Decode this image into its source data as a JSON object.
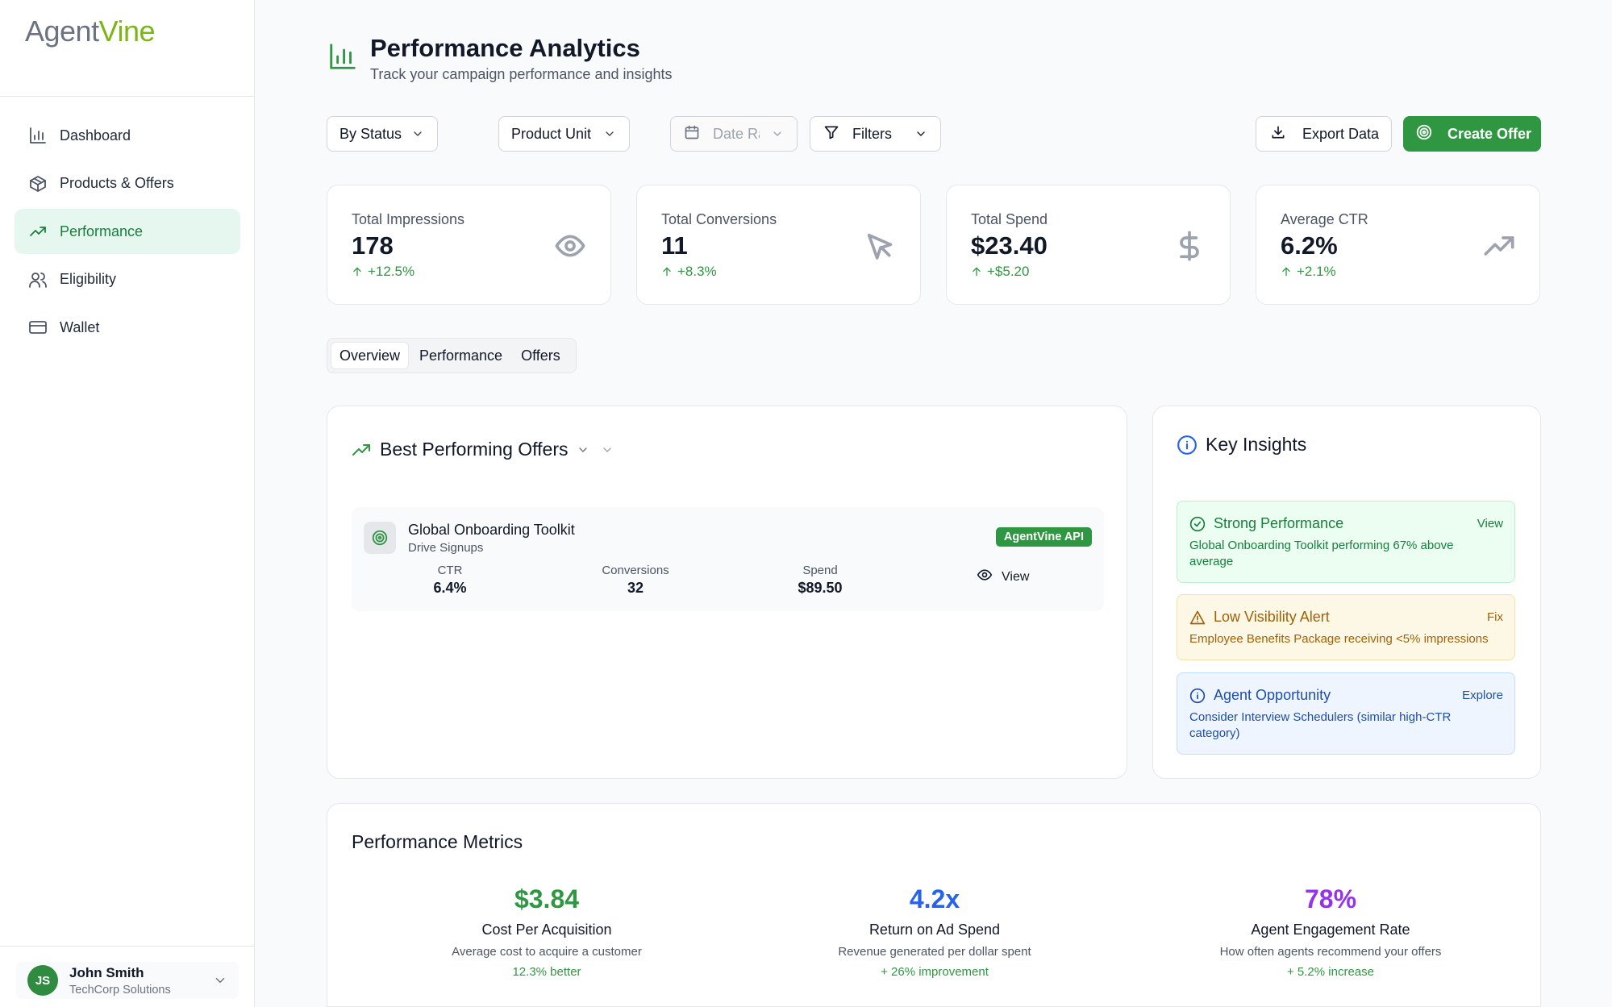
{
  "app": {
    "logo_part1": "Agent",
    "logo_part2": "Vine"
  },
  "sidebar": {
    "items": [
      {
        "label": "Dashboard",
        "icon": "bar-chart-icon"
      },
      {
        "label": "Products & Offers",
        "icon": "package-icon"
      },
      {
        "label": "Performance",
        "icon": "trending-up-icon",
        "active": true
      },
      {
        "label": "Eligibility",
        "icon": "users-icon"
      },
      {
        "label": "Wallet",
        "icon": "credit-card-icon"
      }
    ],
    "user": {
      "initials": "JS",
      "name": "John Smith",
      "org": "TechCorp Solutions"
    }
  },
  "header": {
    "title": "Performance Analytics",
    "subtitle": "Track your campaign performance and insights"
  },
  "toolbar": {
    "status_filter": "By Status",
    "product_filter": "Product Unit",
    "date_placeholder": "Date Ra",
    "filters_label": "Filters",
    "export_label": "Export Data",
    "create_label": "Create Offer"
  },
  "stats": [
    {
      "label": "Total Impressions",
      "value": "178",
      "delta": "+12.5%",
      "icon": "eye-icon"
    },
    {
      "label": "Total Conversions",
      "value": "11",
      "delta": "+8.3%",
      "icon": "cursor-icon"
    },
    {
      "label": "Total Spend",
      "value": "$23.40",
      "delta": "+$5.20",
      "icon": "dollar-icon"
    },
    {
      "label": "Average CTR",
      "value": "6.2%",
      "delta": "+2.1%",
      "icon": "trending-up-icon"
    }
  ],
  "tabs": [
    "Overview",
    "Performance",
    "Offers"
  ],
  "best_offers": {
    "title": "Best Performing Offers",
    "offers": [
      {
        "name": "Global Onboarding Toolkit",
        "goal": "Drive Signups",
        "badge": "AgentVine API",
        "ctr_label": "CTR",
        "ctr": "6.4%",
        "conv_label": "Conversions",
        "conversions": "32",
        "spend_label": "Spend",
        "spend": "$89.50",
        "view_label": "View"
      }
    ]
  },
  "insights": {
    "title": "Key Insights",
    "items": [
      {
        "title": "Strong Performance",
        "action": "View",
        "body": "Global Onboarding Toolkit performing 67% above average",
        "tone": "#16803c"
      },
      {
        "title": "Low Visibility Alert",
        "action": "Fix",
        "body": "Employee Benefits Package receiving <5% impressions",
        "tone": "#a16207"
      },
      {
        "title": "Agent Opportunity",
        "action": "Explore",
        "body": "Consider Interview Schedulers (similar high-CTR category)",
        "tone": "#1e4fa8"
      }
    ]
  },
  "metrics": {
    "title": "Performance Metrics",
    "items": [
      {
        "value": "$3.84",
        "label": "Cost Per Acquisition",
        "desc": "Average cost to acquire a customer",
        "delta": "12.3% better",
        "color": "#2f9642"
      },
      {
        "value": "4.2x",
        "label": "Return on Ad Spend",
        "desc": "Revenue generated per dollar spent",
        "delta": "+ 26% improvement",
        "color": "#2563eb"
      },
      {
        "value": "78%",
        "label": "Agent Engagement Rate",
        "desc": "How often agents recommend your offers",
        "delta": "+ 5.2% increase",
        "color": "#9333ea"
      }
    ]
  }
}
